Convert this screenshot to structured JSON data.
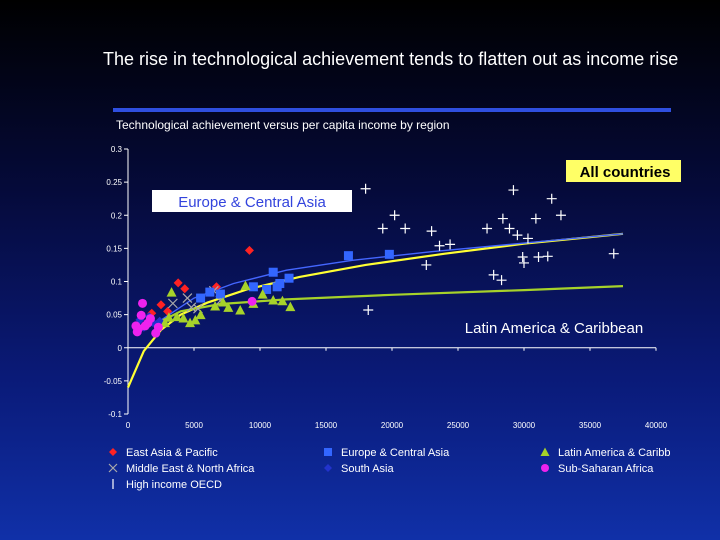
{
  "page": {
    "title": "The rise in technological achievement tends to flatten out as income rise",
    "subtitle": "Technological achievement versus per capita income by region"
  },
  "chart_data": {
    "type": "scatter",
    "xlim": [
      0,
      40000
    ],
    "ylim": [
      -0.1,
      0.3
    ],
    "x_ticks": [
      0,
      5000,
      10000,
      15000,
      20000,
      25000,
      30000,
      35000,
      40000
    ],
    "y_ticks": [
      -0.1,
      -0.05,
      0,
      0.05,
      0.1,
      0.15,
      0.2,
      0.25,
      0.3
    ],
    "x_tick_labels": [
      "0",
      "5000",
      "10000",
      "15000",
      "20000",
      "25000",
      "30000",
      "35000",
      "40000"
    ],
    "y_tick_labels": [
      "-0.1",
      "-0.05",
      "0",
      "0.05",
      "0.1",
      "0.15",
      "0.2",
      "0.25",
      "0.3"
    ],
    "annotations": {
      "all_countries": "All countries",
      "europe": "Europe & Central Asia",
      "latam": "Latin America & Caribbean"
    },
    "colors": {
      "all_countries_label_bg": "#ffff66",
      "europe_label_bg": "#ffffff",
      "europe_label_text": "#3344dd",
      "latam_label_text": "#ffffff",
      "trend_all": "#ffff33",
      "trend_europe": "#4466ff",
      "trend_latam": "#a6d22a"
    },
    "legend_position": "bottom",
    "series": [
      {
        "name": "East Asia & Pacific",
        "marker": "diamond",
        "color": "#ff2222",
        "points": [
          [
            9200,
            0.147
          ],
          [
            3800,
            0.098
          ],
          [
            4300,
            0.089
          ],
          [
            2500,
            0.065
          ],
          [
            3000,
            0.055
          ],
          [
            6700,
            0.092
          ],
          [
            1800,
            0.052
          ]
        ]
      },
      {
        "name": "Middle East & North Africa",
        "marker": "x",
        "color": "#aaaaaa",
        "points": [
          [
            3400,
            0.067
          ],
          [
            4800,
            0.061
          ],
          [
            5300,
            0.059
          ],
          [
            6500,
            0.086
          ],
          [
            7000,
            0.071
          ],
          [
            4500,
            0.075
          ]
        ]
      },
      {
        "name": "High income OECD",
        "marker": "plus",
        "color": "#ffffff",
        "points": [
          [
            18000,
            0.24
          ],
          [
            20200,
            0.2
          ],
          [
            19300,
            0.18
          ],
          [
            21000,
            0.18
          ],
          [
            23000,
            0.176
          ],
          [
            24400,
            0.156
          ],
          [
            22600,
            0.125
          ],
          [
            27200,
            0.18
          ],
          [
            28400,
            0.195
          ],
          [
            28900,
            0.18
          ],
          [
            29500,
            0.17
          ],
          [
            30300,
            0.165
          ],
          [
            30900,
            0.195
          ],
          [
            29900,
            0.137
          ],
          [
            31100,
            0.137
          ],
          [
            31800,
            0.138
          ],
          [
            27700,
            0.11
          ],
          [
            28300,
            0.102
          ],
          [
            30000,
            0.128
          ],
          [
            29200,
            0.238
          ],
          [
            32100,
            0.225
          ],
          [
            36800,
            0.142
          ],
          [
            18200,
            0.057
          ],
          [
            32800,
            0.2
          ],
          [
            23600,
            0.154
          ]
        ]
      },
      {
        "name": "Europe & Central Asia",
        "marker": "square",
        "color": "#3366ff",
        "points": [
          [
            6200,
            0.084
          ],
          [
            7000,
            0.081
          ],
          [
            9500,
            0.092
          ],
          [
            10500,
            0.088
          ],
          [
            11000,
            0.114
          ],
          [
            11300,
            0.092
          ],
          [
            11500,
            0.097
          ],
          [
            12200,
            0.105
          ],
          [
            16700,
            0.139
          ],
          [
            19800,
            0.141
          ],
          [
            5500,
            0.075
          ]
        ]
      },
      {
        "name": "South Asia",
        "marker": "diamond",
        "color": "#2233cc",
        "points": [
          [
            1200,
            0.031
          ],
          [
            1600,
            0.047
          ],
          [
            2400,
            0.04
          ],
          [
            1900,
            0.038
          ],
          [
            900,
            0.042
          ]
        ]
      },
      {
        "name": "Latin America & Caribb",
        "marker": "triangle",
        "color": "#a6d22a",
        "points": [
          [
            2800,
            0.038
          ],
          [
            3100,
            0.046
          ],
          [
            3300,
            0.084
          ],
          [
            3700,
            0.047
          ],
          [
            4200,
            0.045
          ],
          [
            4700,
            0.038
          ],
          [
            5100,
            0.042
          ],
          [
            5500,
            0.05
          ],
          [
            6600,
            0.063
          ],
          [
            7200,
            0.069
          ],
          [
            7600,
            0.061
          ],
          [
            8500,
            0.057
          ],
          [
            8900,
            0.094
          ],
          [
            9500,
            0.067
          ],
          [
            10200,
            0.081
          ],
          [
            11000,
            0.072
          ],
          [
            11700,
            0.071
          ],
          [
            12300,
            0.062
          ]
        ]
      },
      {
        "name": "Sub-Saharan Africa",
        "marker": "circle",
        "color": "#ee22ee",
        "points": [
          [
            600,
            0.033
          ],
          [
            800,
            0.029
          ],
          [
            1000,
            0.049
          ],
          [
            1300,
            0.033
          ],
          [
            1500,
            0.037
          ],
          [
            1700,
            0.044
          ],
          [
            2100,
            0.022
          ],
          [
            2300,
            0.031
          ],
          [
            1100,
            0.067
          ],
          [
            9400,
            0.07
          ],
          [
            700,
            0.024
          ]
        ]
      }
    ],
    "trend_lines": [
      {
        "name": "All countries",
        "points": [
          [
            0,
            -0.06
          ],
          [
            1200,
            -0.005
          ],
          [
            2500,
            0.027
          ],
          [
            4000,
            0.05
          ],
          [
            6000,
            0.068
          ],
          [
            9000,
            0.088
          ],
          [
            13000,
            0.107
          ],
          [
            18000,
            0.125
          ],
          [
            24000,
            0.142
          ],
          [
            30000,
            0.157
          ],
          [
            35000,
            0.167
          ],
          [
            37500,
            0.172
          ]
        ]
      },
      {
        "name": "Europe & Central Asia",
        "points": [
          [
            2000,
            0.035
          ],
          [
            5000,
            0.075
          ],
          [
            8000,
            0.097
          ],
          [
            12000,
            0.117
          ],
          [
            17000,
            0.132
          ],
          [
            23000,
            0.145
          ],
          [
            30000,
            0.158
          ],
          [
            37500,
            0.172
          ]
        ]
      },
      {
        "name": "Latin America & Caribbean",
        "points": [
          [
            2000,
            0.035
          ],
          [
            4000,
            0.055
          ],
          [
            7000,
            0.066
          ],
          [
            12000,
            0.073
          ],
          [
            20000,
            0.08
          ],
          [
            30000,
            0.087
          ],
          [
            37500,
            0.093
          ]
        ]
      }
    ]
  }
}
